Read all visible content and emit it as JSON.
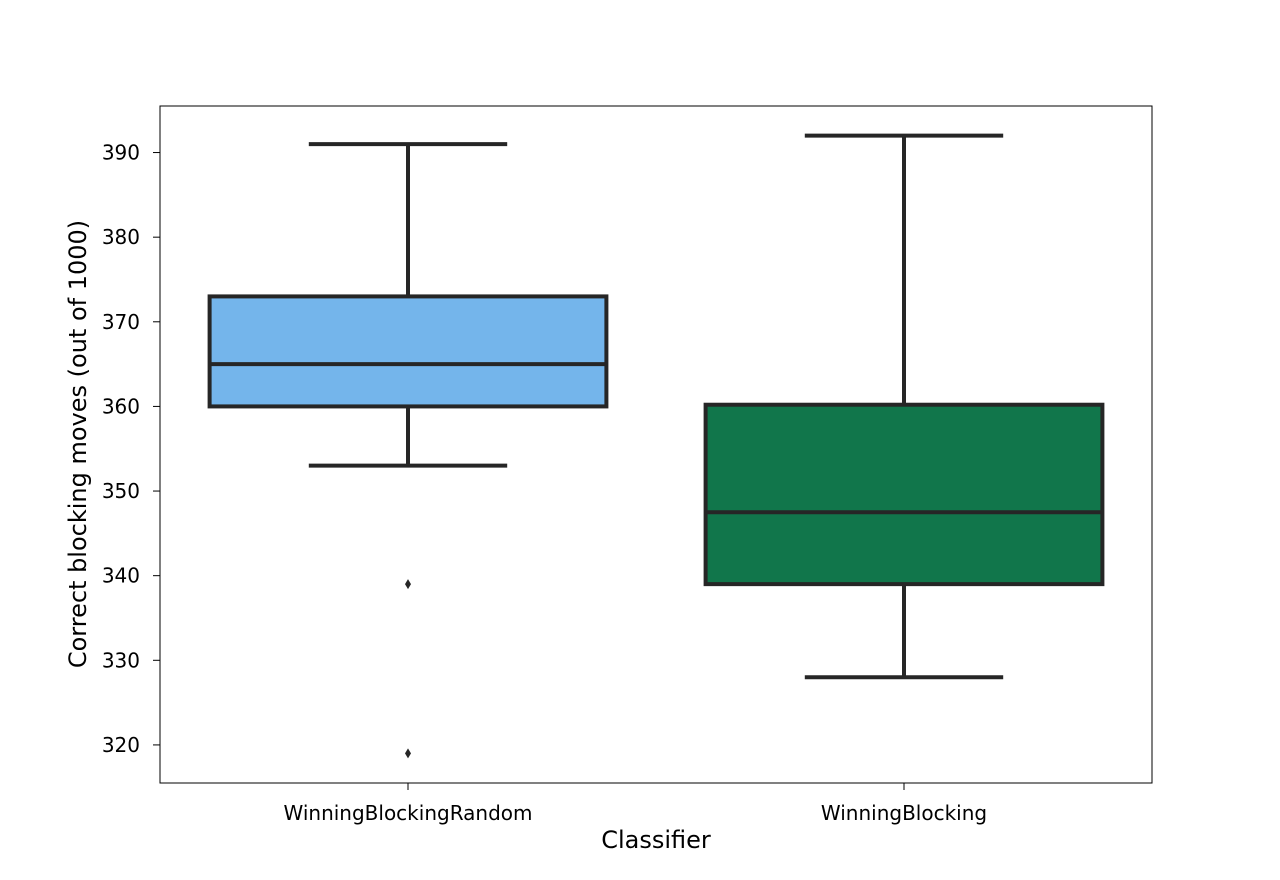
{
  "chart_data": {
    "type": "box",
    "title": "",
    "xlabel": "Classifier",
    "ylabel": "Correct blocking moves (out of 1000)",
    "ylim": [
      315.5,
      395.5
    ],
    "yticks": [
      320,
      330,
      340,
      350,
      360,
      370,
      380,
      390
    ],
    "grid": false,
    "categories": [
      "WinningBlockingRandom",
      "WinningBlocking"
    ],
    "boxes": [
      {
        "category": "WinningBlockingRandom",
        "whisker_low": 353,
        "q1": 360,
        "median": 365,
        "q3": 373,
        "whisker_high": 391,
        "outliers": [
          339,
          319
        ],
        "color": "#74b5eb"
      },
      {
        "category": "WinningBlocking",
        "whisker_low": 328,
        "q1": 339,
        "median": 347.5,
        "q3": 360.2,
        "whisker_high": 392,
        "outliers": [],
        "color": "#11764b"
      }
    ],
    "line_color": "#262626"
  }
}
